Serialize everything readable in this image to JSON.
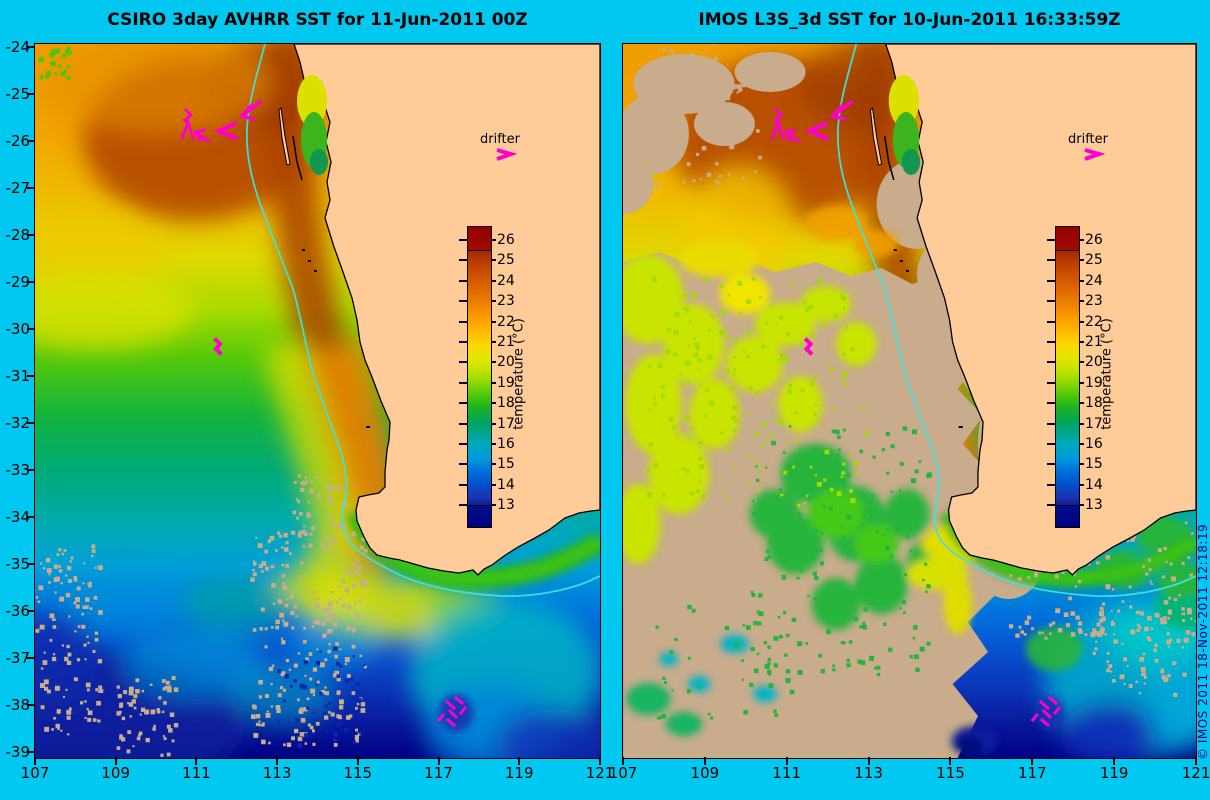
{
  "colors": {
    "background": "#00C8F0",
    "land": "#FFCC99",
    "cloud": "#C8AC8C",
    "drifter": "#FF00CC",
    "contour": "#40E0E0",
    "watermark": "#000082"
  },
  "panels": [
    {
      "title": "CSIRO 3day AVHRR SST for 11-Jun-2011 00Z"
    },
    {
      "title": "IMOS L3S_3d SST for 10-Jun-2011 16:33:59Z"
    }
  ],
  "axes": {
    "lat_ticks": [
      "-24",
      "-25",
      "-26",
      "-27",
      "-28",
      "-29",
      "-30",
      "-31",
      "-32",
      "-33",
      "-34",
      "-35",
      "-36",
      "-37",
      "-38",
      "-39"
    ],
    "lon_ticks": [
      "107",
      "109",
      "111",
      "113",
      "115",
      "117",
      "119",
      "121"
    ]
  },
  "colorbar": {
    "title": "temperature (°C)",
    "ticks": [
      "26",
      "25",
      "24",
      "23",
      "22",
      "21",
      "20",
      "19",
      "18",
      "17",
      "16",
      "15",
      "14",
      "13"
    ],
    "min": 13,
    "max": 26
  },
  "drifter_legend_label": "drifter",
  "watermark": "© IMOS 2011  18-Nov-2011 12:18:19"
}
